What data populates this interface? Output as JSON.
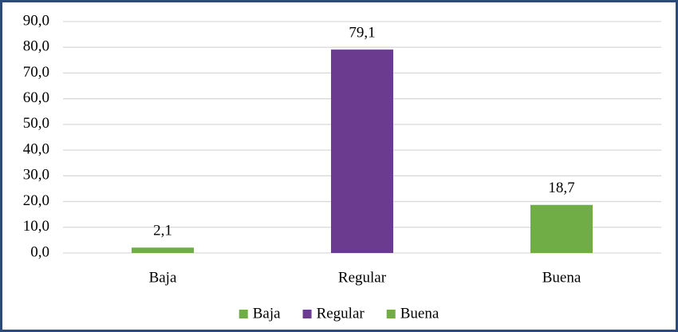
{
  "chart_data": {
    "type": "bar",
    "categories": [
      "Baja",
      "Regular",
      "Buena"
    ],
    "values": [
      2.1,
      79.1,
      18.7
    ],
    "value_labels": [
      "2,1",
      "79,1",
      "18,7"
    ],
    "colors": [
      "#70ad47",
      "#6a3b8e",
      "#70ad47"
    ],
    "ylim": [
      0,
      90
    ],
    "yticks": [
      {
        "value": 0,
        "label": "0,0"
      },
      {
        "value": 10,
        "label": "10,0"
      },
      {
        "value": 20,
        "label": "20,0"
      },
      {
        "value": 30,
        "label": "30,0"
      },
      {
        "value": 40,
        "label": "40,0"
      },
      {
        "value": 50,
        "label": "50,0"
      },
      {
        "value": 60,
        "label": "60,0"
      },
      {
        "value": 70,
        "label": "70,0"
      },
      {
        "value": 80,
        "label": "80,0"
      },
      {
        "value": 90,
        "label": "90,0"
      }
    ],
    "grid": true,
    "legend": "bottom"
  }
}
